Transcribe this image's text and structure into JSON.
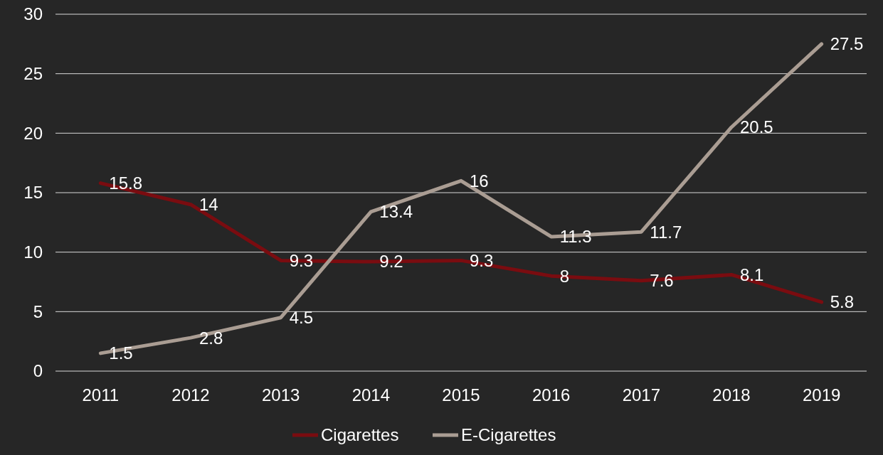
{
  "chart_data": {
    "type": "line",
    "categories": [
      "2011",
      "2012",
      "2013",
      "2014",
      "2015",
      "2016",
      "2017",
      "2018",
      "2019"
    ],
    "series": [
      {
        "name": "Cigarettes",
        "color": "#7a0c10",
        "values": [
          15.8,
          14,
          9.3,
          9.2,
          9.3,
          8,
          7.6,
          8.1,
          5.8
        ]
      },
      {
        "name": "E-Cigarettes",
        "color": "#aa9d93",
        "values": [
          1.5,
          2.8,
          4.5,
          13.4,
          16,
          11.3,
          11.7,
          20.5,
          27.5
        ]
      }
    ],
    "ylim": [
      0,
      30
    ],
    "yticks": [
      0,
      5,
      10,
      15,
      20,
      25,
      30
    ],
    "grid": "y",
    "legend": "bottom",
    "data_labels": true,
    "marker": "none",
    "line_style": "solid"
  }
}
